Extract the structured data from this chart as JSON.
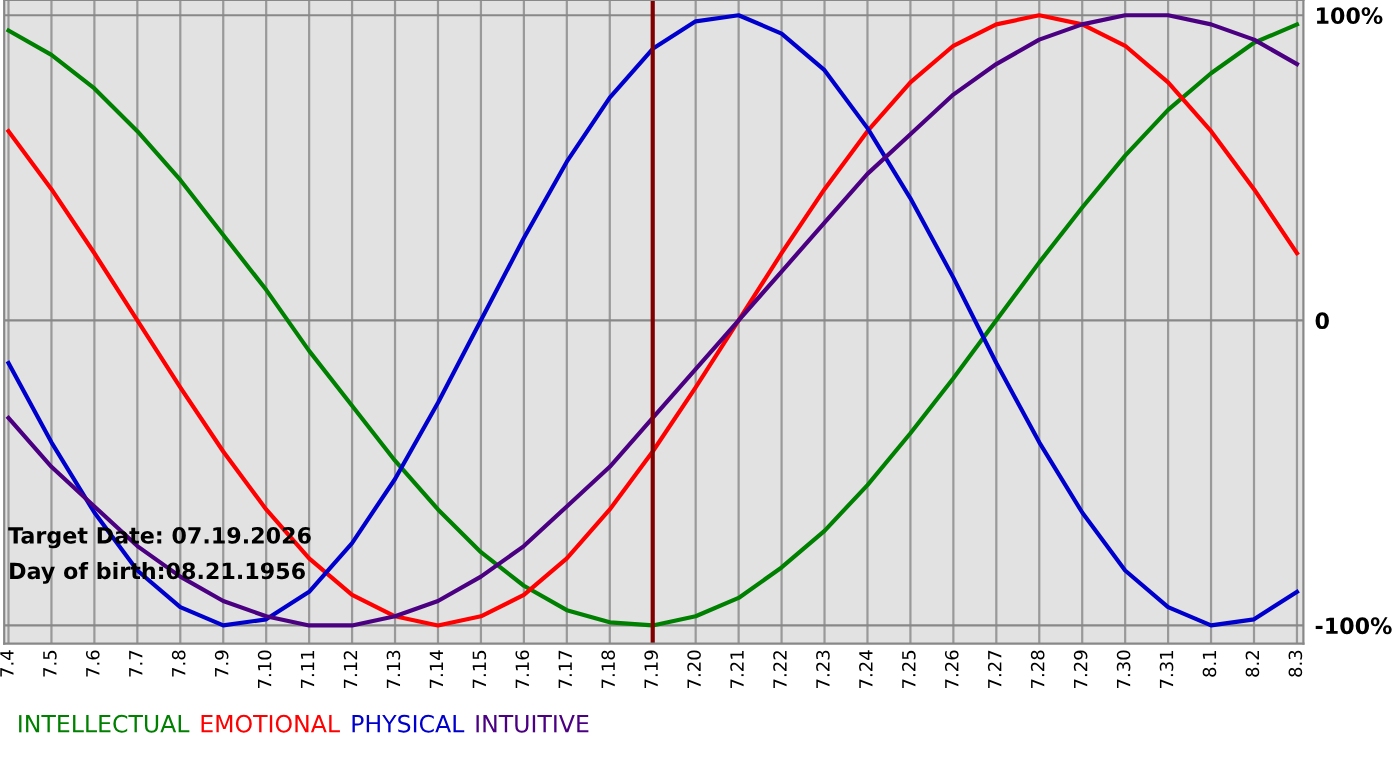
{
  "chart_data": {
    "type": "line",
    "categories": [
      "7.4",
      "7.5",
      "7.6",
      "7.7",
      "7.8",
      "7.9",
      "7.10",
      "7.11",
      "7.12",
      "7.13",
      "7.14",
      "7.15",
      "7.16",
      "7.17",
      "7.18",
      "7.19",
      "7.20",
      "7.21",
      "7.22",
      "7.23",
      "7.24",
      "7.25",
      "7.26",
      "7.27",
      "7.28",
      "7.29",
      "7.30",
      "7.31",
      "8.1",
      "8.2",
      "8.3"
    ],
    "series": [
      {
        "name": "INTELLECTUAL",
        "color": "#008000",
        "values": [
          95,
          87,
          76,
          62,
          46,
          28,
          10,
          -10,
          -28,
          -46,
          -62,
          -76,
          -87,
          -95,
          -99,
          -100,
          -97,
          -91,
          -81,
          -69,
          -54,
          -37,
          -19,
          0,
          19,
          37,
          54,
          69,
          81,
          91,
          97
        ]
      },
      {
        "name": "EMOTIONAL",
        "color": "#ff0000",
        "values": [
          62,
          43,
          22,
          0,
          -22,
          -43,
          -62,
          -78,
          -90,
          -97,
          -100,
          -97,
          -90,
          -78,
          -62,
          -43,
          -22,
          0,
          22,
          43,
          62,
          78,
          90,
          97,
          100,
          97,
          90,
          78,
          62,
          43,
          22
        ]
      },
      {
        "name": "PHYSICAL",
        "color": "#0000cc",
        "values": [
          -14,
          -40,
          -63,
          -82,
          -94,
          -100,
          -98,
          -89,
          -73,
          -52,
          -27,
          0,
          27,
          52,
          73,
          89,
          98,
          100,
          94,
          82,
          63,
          40,
          14,
          -14,
          -40,
          -63,
          -82,
          -94,
          -100,
          -98,
          -89
        ]
      },
      {
        "name": "INTUITIVE",
        "color": "#4b0082",
        "values": [
          -32,
          -48,
          -61,
          -74,
          -84,
          -92,
          -97,
          -100,
          -100,
          -97,
          -92,
          -84,
          -74,
          -61,
          -48,
          -32,
          -16,
          0,
          16,
          32,
          48,
          61,
          74,
          84,
          92,
          97,
          100,
          100,
          97,
          92,
          84
        ]
      }
    ],
    "ylim": [
      -106,
      105
    ],
    "yticks": [
      {
        "value": 100,
        "label": "100%"
      },
      0,
      {
        "value": -100,
        "label": "-100%"
      }
    ],
    "ref_lines": [
      {
        "axis": "x",
        "value": "7.19",
        "color": "#800000"
      }
    ],
    "annotations": [
      "Target Date: 07.19.2026",
      "Day of birth:08.21.1956"
    ],
    "grid": true,
    "legend": "bottom",
    "marker": "none",
    "line_style": "solid"
  }
}
